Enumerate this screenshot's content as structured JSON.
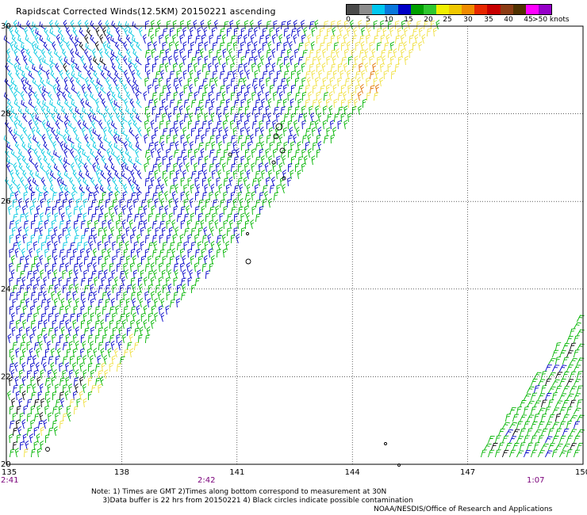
{
  "title": "Rapidscat Corrected Winds(12.5KM) 20150221 ascending",
  "legend": {
    "labels": [
      "0",
      "5",
      "10",
      "15",
      "20",
      "25",
      "30",
      "35",
      "40",
      "45",
      ">50 knots"
    ],
    "colors": [
      "#4a4a4a",
      "#8c8c8c",
      "#00c8f0",
      "#0a78dc",
      "#0000c8",
      "#00a000",
      "#30c830",
      "#f0f000",
      "#f0c800",
      "#f08c00",
      "#e82800",
      "#c80000",
      "#8c3c14",
      "#503200",
      "#ff00ff",
      "#9600c8"
    ]
  },
  "axes": {
    "lon_ticks": [
      "135",
      "138",
      "141",
      "144",
      "147",
      "150"
    ],
    "lat_ticks": [
      "20",
      "22",
      "24",
      "26",
      "28",
      "30"
    ],
    "time_labels": [
      "2:41",
      "2:42",
      "1:07"
    ]
  },
  "notes": {
    "line1": "Note: 1) Times are GMT 2)Times along bottom correspond to measurement at 30N",
    "line2": "3)Data buffer is 22 hrs from 20150221 4) Black circles indicate possible contamination"
  },
  "credit": "NOAA/NESDIS/Office of Research and Applications",
  "wind_colors": {
    "calm": "#000000",
    "light": "#00c8e0",
    "moderate": "#0000c8",
    "fresh": "#00b400",
    "strong": "#f0e040",
    "gale": "#e07000"
  }
}
